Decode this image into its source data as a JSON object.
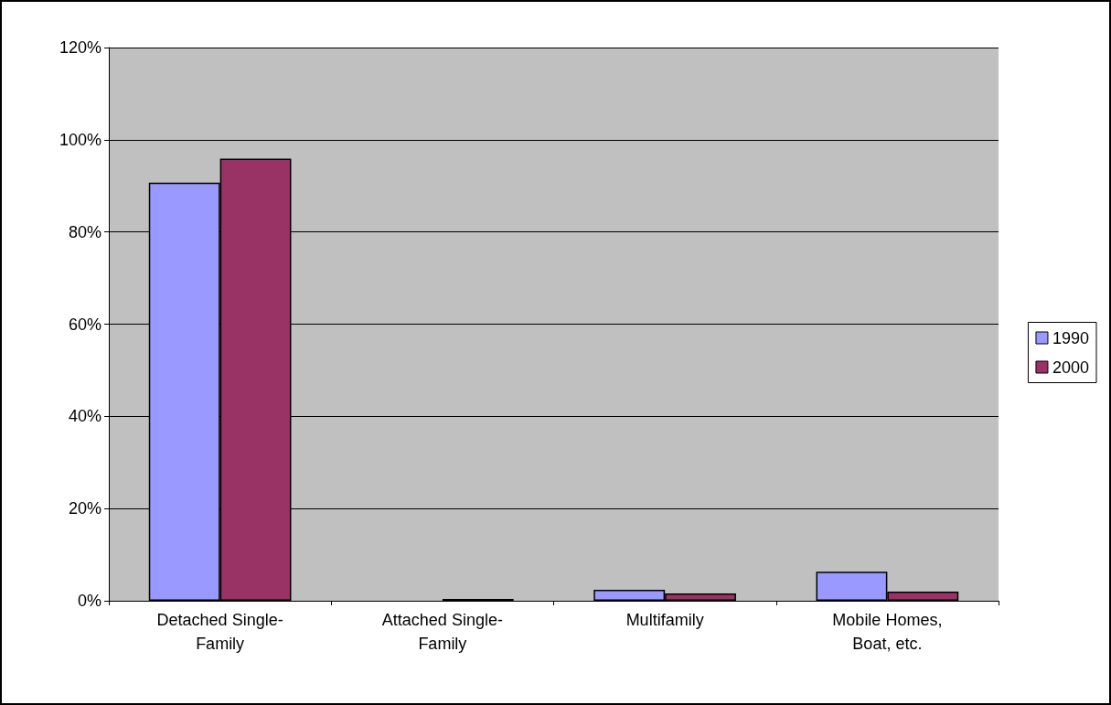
{
  "chart_data": {
    "type": "bar",
    "categories": [
      "Detached Single-Family",
      "Attached Single-Family",
      "Multifamily",
      "Mobile Homes, Boat, etc."
    ],
    "series": [
      {
        "name": "1990",
        "color": "#9999ff",
        "values": [
          90.7,
          null,
          2.4,
          6.3
        ]
      },
      {
        "name": "2000",
        "color": "#993366",
        "values": [
          95.9,
          0.4,
          1.6,
          2.0
        ]
      }
    ],
    "ylim": [
      0,
      120
    ],
    "yticks": [
      {
        "value": 0,
        "label": "0%"
      },
      {
        "value": 20,
        "label": "20%"
      },
      {
        "value": 40,
        "label": "40%"
      },
      {
        "value": 60,
        "label": "60%"
      },
      {
        "value": 80,
        "label": "80%"
      },
      {
        "value": 100,
        "label": "100%"
      },
      {
        "value": 120,
        "label": "120%"
      }
    ],
    "grid": "y",
    "legend": "right"
  }
}
